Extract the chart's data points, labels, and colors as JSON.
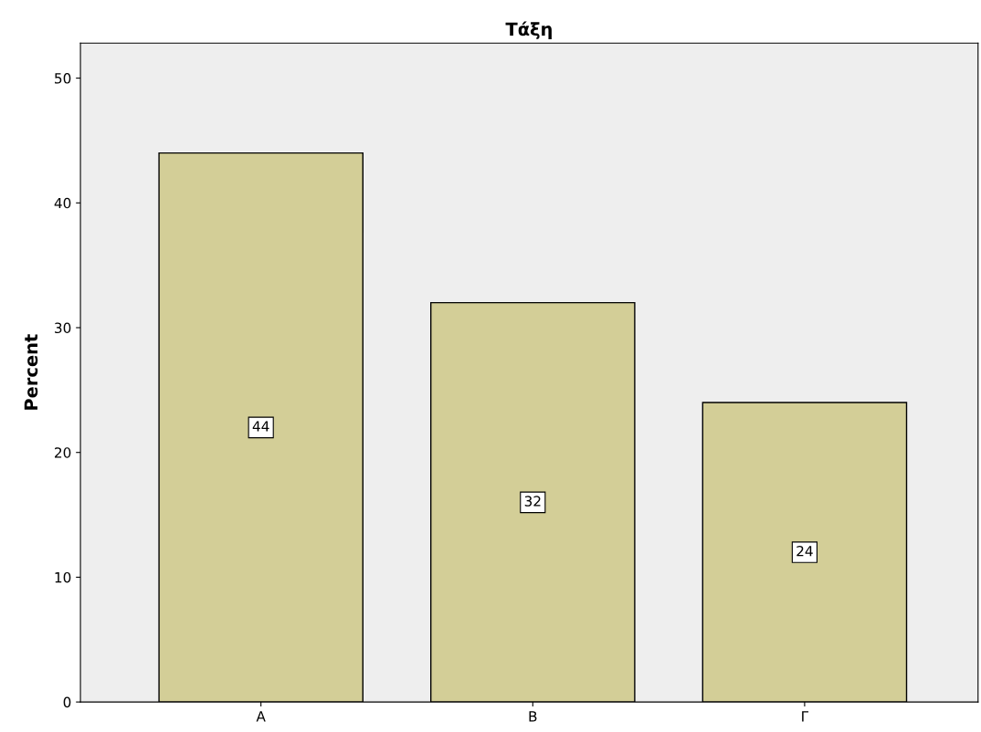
{
  "chart_data": {
    "type": "bar",
    "title": "Τάξη",
    "ylabel": "Percent",
    "categories": [
      "Α",
      "Β",
      "Γ"
    ],
    "values": [
      44,
      32,
      24
    ],
    "color": "#d3ce97",
    "ylim": [
      0,
      52.8
    ],
    "yticks": [
      0,
      10,
      20,
      30,
      40,
      50
    ],
    "grid": false,
    "data_labels": true
  }
}
